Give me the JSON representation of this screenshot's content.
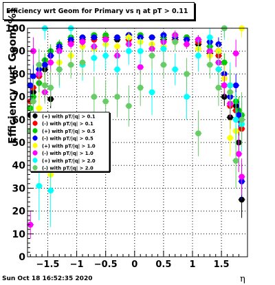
{
  "title": "Efficiency wrt Geom for Primary vs  η at pT > 0.11",
  "timestamp": "Sun Oct 18 16:52:35 2020",
  "chart_data": {
    "type": "scatter",
    "xlabel": "η",
    "ylabel": "Efficiency wrt Geom(%)",
    "xlim": [
      -1.85,
      1.95
    ],
    "ylim": [
      0,
      100
    ],
    "xticks": [
      -1.5,
      -1,
      -0.5,
      0,
      0.5,
      1,
      1.5
    ],
    "xtick_labels": [
      "−1.5",
      "−1",
      "−0.5",
      "0",
      "0.5",
      "1",
      "1.5"
    ],
    "yticks": [
      0,
      10,
      20,
      30,
      40,
      50,
      60,
      70,
      80,
      90,
      100
    ],
    "grid": true,
    "legend_position": "left-middle",
    "series": [
      {
        "name": "(+) with pT/|q| > 0.1",
        "color": "#000000",
        "x": [
          -1.8,
          -1.75,
          -1.65,
          -1.55,
          -1.45,
          -1.3,
          -1.1,
          -0.9,
          -0.7,
          -0.5,
          -0.3,
          -0.1,
          0.1,
          0.3,
          0.5,
          0.7,
          0.9,
          1.1,
          1.3,
          1.45,
          1.55,
          1.65,
          1.75,
          1.8,
          1.85
        ],
        "y": [
          62,
          72,
          80,
          82,
          69,
          91,
          94,
          95,
          96,
          96,
          95,
          97,
          96,
          96,
          95,
          95,
          96,
          93,
          89,
          90,
          70,
          61,
          66,
          50,
          25
        ],
        "err": [
          8,
          6,
          5,
          5,
          4,
          2,
          1,
          1,
          1,
          1,
          1,
          1,
          1,
          1,
          1,
          1,
          1,
          2,
          3,
          3,
          4,
          5,
          5,
          6,
          8
        ]
      },
      {
        "name": "(-) with pT/|q| > 0.1",
        "color": "#ff0000",
        "x": [
          -1.8,
          -1.75,
          -1.65,
          -1.55,
          -1.45,
          -1.3,
          -1.1,
          -0.9,
          -0.7,
          -0.5,
          -0.3,
          -0.1,
          0.1,
          0.3,
          0.5,
          0.7,
          0.9,
          1.1,
          1.3,
          1.45,
          1.55,
          1.65,
          1.75,
          1.8,
          1.85
        ],
        "y": [
          68,
          74,
          79,
          84,
          88,
          92,
          94,
          95,
          95,
          96,
          96,
          95,
          96,
          96,
          96,
          95,
          95,
          94,
          90,
          88,
          75,
          66,
          64,
          60,
          56
        ],
        "err": [
          6,
          5,
          4,
          3,
          3,
          2,
          1,
          1,
          1,
          1,
          1,
          1,
          1,
          1,
          1,
          1,
          1,
          2,
          3,
          3,
          4,
          5,
          5,
          6,
          6
        ]
      },
      {
        "name": "(+) with pT/|q| > 0.5",
        "color": "#00cc00",
        "x": [
          -1.8,
          -1.75,
          -1.65,
          -1.55,
          -1.45,
          -1.3,
          -1.1,
          -0.9,
          -0.7,
          -0.5,
          -0.3,
          -0.1,
          0.1,
          0.3,
          0.5,
          0.7,
          0.9,
          1.1,
          1.3,
          1.45,
          1.55,
          1.65,
          1.75,
          1.8,
          1.85
        ],
        "y": [
          65,
          70,
          76,
          86,
          90,
          93,
          96,
          96,
          97,
          97,
          96,
          96,
          97,
          96,
          96,
          97,
          96,
          95,
          92,
          90,
          85,
          75,
          68,
          64,
          62
        ],
        "err": [
          7,
          5,
          4,
          3,
          3,
          2,
          1,
          1,
          1,
          1,
          1,
          1,
          1,
          1,
          1,
          1,
          1,
          2,
          2,
          3,
          4,
          5,
          5,
          6,
          6
        ]
      },
      {
        "name": "(-) with pT/|q| > 0.5",
        "color": "#0000ff",
        "x": [
          -1.8,
          -1.75,
          -1.65,
          -1.55,
          -1.45,
          -1.3,
          -1.1,
          -0.9,
          -0.7,
          -0.5,
          -0.3,
          -0.1,
          0.1,
          0.3,
          0.5,
          0.7,
          0.9,
          1.1,
          1.3,
          1.45,
          1.55,
          1.65,
          1.75,
          1.8,
          1.85
        ],
        "y": [
          75,
          79,
          82,
          84,
          88,
          92,
          95,
          96,
          96,
          95,
          96,
          97,
          96,
          96,
          97,
          96,
          95,
          95,
          94,
          93,
          80,
          70,
          75,
          62,
          33
        ],
        "err": [
          7,
          5,
          4,
          3,
          3,
          2,
          1,
          1,
          1,
          1,
          1,
          1,
          1,
          1,
          1,
          1,
          1,
          2,
          2,
          3,
          4,
          5,
          5,
          6,
          8
        ]
      },
      {
        "name": "(+) with pT/|q| > 1.0",
        "color": "#ffff00",
        "x": [
          -1.75,
          -1.65,
          -1.55,
          -1.45,
          -1.3,
          -1.1,
          -0.9,
          -0.7,
          -0.5,
          -0.3,
          -0.1,
          0.1,
          0.3,
          0.5,
          0.7,
          0.9,
          1.1,
          1.3,
          1.45,
          1.55,
          1.65,
          1.75,
          1.85
        ],
        "y": [
          60,
          65,
          75,
          36,
          85,
          88,
          92,
          91,
          93,
          92,
          96,
          94,
          93,
          92,
          94,
          93,
          91,
          88,
          90,
          78,
          52,
          55,
          100
        ],
        "err": [
          8,
          7,
          6,
          10,
          4,
          3,
          2,
          2,
          2,
          2,
          2,
          2,
          2,
          2,
          2,
          2,
          2,
          3,
          3,
          6,
          8,
          7,
          4
        ]
      },
      {
        "name": "(-) with pT/|q| > 1.0",
        "color": "#ff00ff",
        "x": [
          -1.8,
          -1.75,
          -1.65,
          -1.55,
          -1.45,
          -1.3,
          -1.1,
          -0.9,
          -0.7,
          -0.5,
          -0.3,
          -0.1,
          0.1,
          0.3,
          0.5,
          0.7,
          0.9,
          1.1,
          1.3,
          1.45,
          1.55,
          1.65,
          1.75,
          1.8,
          1.85
        ],
        "y": [
          14,
          90,
          80,
          72,
          85,
          90,
          93,
          94,
          92,
          95,
          88,
          93,
          83,
          91,
          94,
          97,
          93,
          95,
          90,
          85,
          75,
          67,
          89,
          45,
          35
        ],
        "err": [
          6,
          6,
          5,
          4,
          4,
          3,
          2,
          2,
          2,
          2,
          3,
          2,
          3,
          2,
          2,
          2,
          2,
          2,
          3,
          3,
          5,
          6,
          6,
          8,
          8
        ]
      },
      {
        "name": "(+) with pT/|q| > 2.0",
        "color": "#00ffff",
        "x": [
          -1.75,
          -1.65,
          -1.55,
          -1.45,
          -1.3,
          -1.1,
          -0.9,
          -0.7,
          -0.5,
          -0.3,
          -0.1,
          0.1,
          0.3,
          0.5,
          0.7,
          0.9,
          1.1,
          1.3,
          1.45,
          1.55,
          1.65,
          1.75,
          1.85
        ],
        "y": [
          52,
          31,
          100,
          29,
          82,
          100,
          84,
          87,
          88,
          82,
          90,
          90,
          72,
          91,
          82,
          70,
          88,
          96,
          82,
          100,
          75,
          60,
          58
        ],
        "err": [
          15,
          15,
          5,
          16,
          8,
          4,
          7,
          6,
          6,
          7,
          6,
          6,
          10,
          6,
          7,
          10,
          7,
          5,
          8,
          5,
          10,
          12,
          12
        ]
      },
      {
        "name": "(-) with pT/|q| > 2.0",
        "color": "#66cc66",
        "x": [
          -1.8,
          -1.75,
          -1.65,
          -1.55,
          -1.45,
          -1.3,
          -1.1,
          -0.9,
          -0.7,
          -0.5,
          -0.3,
          -0.1,
          0.1,
          0.3,
          0.5,
          0.7,
          0.9,
          1.1,
          1.3,
          1.45,
          1.55,
          1.65,
          1.75,
          1.85
        ],
        "y": [
          55,
          68,
          84,
          75,
          74,
          82,
          84,
          85,
          70,
          68,
          70,
          66,
          74,
          88,
          84,
          94,
          80,
          54,
          84,
          74,
          100,
          72,
          42,
          60
        ],
        "err": [
          12,
          10,
          7,
          8,
          8,
          7,
          6,
          6,
          9,
          9,
          9,
          9,
          8,
          6,
          6,
          4,
          7,
          10,
          6,
          8,
          4,
          10,
          12,
          12
        ]
      }
    ]
  }
}
